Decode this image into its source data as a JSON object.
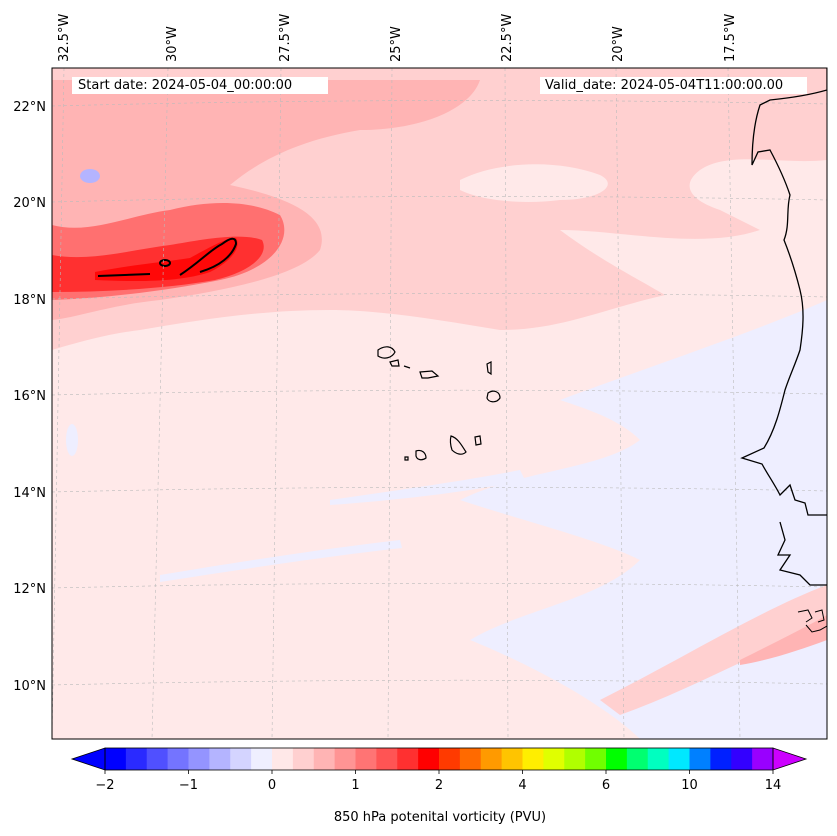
{
  "header": {
    "start_date": "Start date: 2024-05-04_00:00:00",
    "valid_date": "Valid_date: 2024-05-04T11:00:00.00"
  },
  "axes": {
    "lon_labels": [
      "32.5°W",
      "30°W",
      "27.5°W",
      "25°W",
      "22.5°W",
      "20°W",
      "17.5°W"
    ],
    "lat_labels": [
      "22°N",
      "20°N",
      "18°N",
      "16°N",
      "14°N",
      "12°N",
      "10°N"
    ]
  },
  "colorbar": {
    "label": "850 hPa potenital vorticity (PVU)",
    "ticks": [
      "−2",
      "−1",
      "0",
      "1",
      "2",
      "4",
      "6",
      "10",
      "14"
    ],
    "colors": [
      "#0000ff",
      "#2a2aff",
      "#5050ff",
      "#7474ff",
      "#9494ff",
      "#b4b4ff",
      "#d4d4ff",
      "#efefff",
      "#ffe8e8",
      "#ffd0d0",
      "#ffb4b4",
      "#ff9494",
      "#ff7474",
      "#ff5454",
      "#ff3030",
      "#ff0000",
      "#ff3a00",
      "#ff6a00",
      "#ff9a00",
      "#ffc400",
      "#ffee00",
      "#e0ff00",
      "#b0ff00",
      "#70ff00",
      "#00ff00",
      "#00ff70",
      "#00ffc0",
      "#00e8ff",
      "#0080ff",
      "#0020ff",
      "#3300ff",
      "#9900ff"
    ],
    "under_color": "#0000ff",
    "over_color": "#cc00ff"
  },
  "map_colors": {
    "background": "#ffe9e9",
    "light_pink": "#ffd0d0",
    "pink": "#ffb4b4",
    "medium_red": "#ff7070",
    "red": "#ff3030",
    "deep_red": "#ff0808",
    "pale_blue": "#eeeeff",
    "blue_spot": "#b4b4ff",
    "coast": "#000000"
  }
}
